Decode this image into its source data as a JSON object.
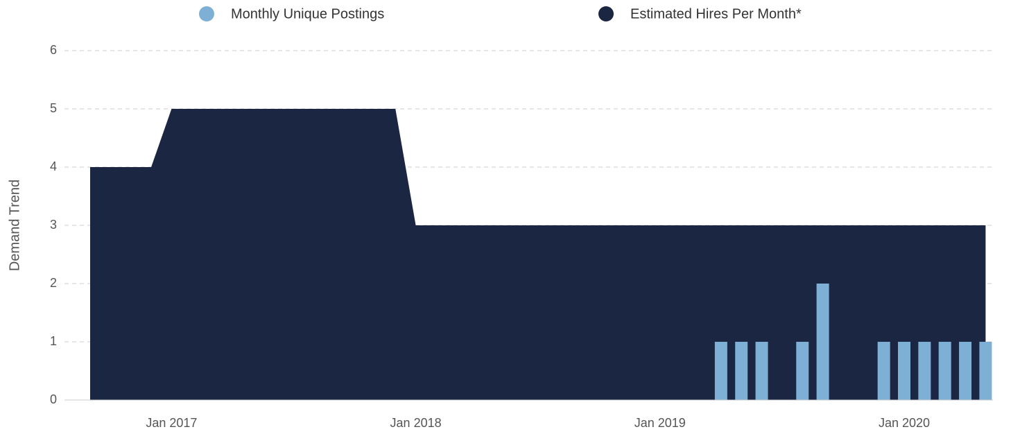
{
  "chart_data": {
    "type": "bar+area",
    "y_label": "Demand Trend",
    "x": [
      "2016-09",
      "2016-10",
      "2016-11",
      "2016-12",
      "2017-01",
      "2017-02",
      "2017-03",
      "2017-04",
      "2017-05",
      "2017-06",
      "2017-07",
      "2017-08",
      "2017-09",
      "2017-10",
      "2017-11",
      "2017-12",
      "2018-01",
      "2018-02",
      "2018-03",
      "2018-04",
      "2018-05",
      "2018-06",
      "2018-07",
      "2018-08",
      "2018-09",
      "2018-10",
      "2018-11",
      "2018-12",
      "2019-01",
      "2019-02",
      "2019-03",
      "2019-04",
      "2019-05",
      "2019-06",
      "2019-07",
      "2019-08",
      "2019-09",
      "2019-10",
      "2019-11",
      "2019-12",
      "2020-01",
      "2020-02",
      "2020-03",
      "2020-04",
      "2020-05"
    ],
    "series": [
      {
        "name": "Monthly Unique Postings",
        "type": "bar",
        "color": "#7eb0d5",
        "values": [
          0,
          0,
          0,
          0,
          0,
          0,
          0,
          0,
          0,
          0,
          0,
          0,
          0,
          0,
          0,
          0,
          0,
          0,
          0,
          0,
          0,
          0,
          0,
          0,
          0,
          0,
          0,
          0,
          0,
          0,
          0,
          1,
          1,
          1,
          0,
          1,
          2,
          0,
          0,
          1,
          1,
          1,
          1,
          1,
          1
        ]
      },
      {
        "name": "Estimated Hires Per Month*",
        "type": "area",
        "color": "#1b2642",
        "values": [
          4,
          4,
          4,
          4,
          5,
          5,
          5,
          5,
          5,
          5,
          5,
          5,
          5,
          5,
          5,
          5,
          3,
          3,
          3,
          3,
          3,
          3,
          3,
          3,
          3,
          3,
          3,
          3,
          3,
          3,
          3,
          3,
          3,
          3,
          3,
          3,
          3,
          3,
          3,
          3,
          3,
          3,
          3,
          3,
          3
        ]
      }
    ],
    "xticks": [
      {
        "value": "2017-01",
        "label": "Jan 2017"
      },
      {
        "value": "2018-01",
        "label": "Jan 2018"
      },
      {
        "value": "2019-01",
        "label": "Jan 2019"
      },
      {
        "value": "2020-01",
        "label": "Jan 2020"
      }
    ],
    "ylim": [
      0,
      6
    ],
    "yticks": [
      0,
      1,
      2,
      3,
      4,
      5,
      6
    ],
    "grid": true
  }
}
